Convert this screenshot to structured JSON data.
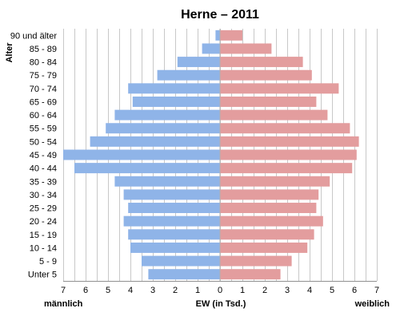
{
  "chart_data": {
    "type": "bar",
    "orientation": "horizontal",
    "layout": "population-pyramid",
    "title": "Herne – 2011",
    "ylabel": "Alter",
    "xlabel": "EW (in Tsd.)",
    "left_label": "männlich",
    "right_label": "weiblich",
    "xlim": [
      -7,
      7
    ],
    "x_ticks": [
      "7",
      "6",
      "5",
      "4",
      "3",
      "2",
      "1",
      "0",
      "1",
      "2",
      "3",
      "4",
      "5",
      "6",
      "7"
    ],
    "grid": true,
    "categories": [
      "90 und älter",
      "85 - 89",
      "80 - 84",
      "75 - 79",
      "70 - 74",
      "65 - 69",
      "60 - 64",
      "55 - 59",
      "50 - 54",
      "45 - 49",
      "40 - 44",
      "35 - 39",
      "30 - 34",
      "25 - 29",
      "20 - 24",
      "15 - 19",
      "10 - 14",
      "5 - 9",
      "Unter 5"
    ],
    "series": [
      {
        "name": "männlich",
        "color": "#8fb4e8",
        "values": [
          0.2,
          0.8,
          1.9,
          2.8,
          4.1,
          3.9,
          4.7,
          5.1,
          5.8,
          7.0,
          6.5,
          4.7,
          4.3,
          4.1,
          4.3,
          4.1,
          4.0,
          3.5,
          3.2
        ]
      },
      {
        "name": "weiblich",
        "color": "#e39d9e",
        "values": [
          1.0,
          2.3,
          3.7,
          4.1,
          5.3,
          4.3,
          4.8,
          5.8,
          6.2,
          6.1,
          5.9,
          4.9,
          4.4,
          4.3,
          4.6,
          4.2,
          3.9,
          3.2,
          2.7
        ]
      }
    ]
  }
}
